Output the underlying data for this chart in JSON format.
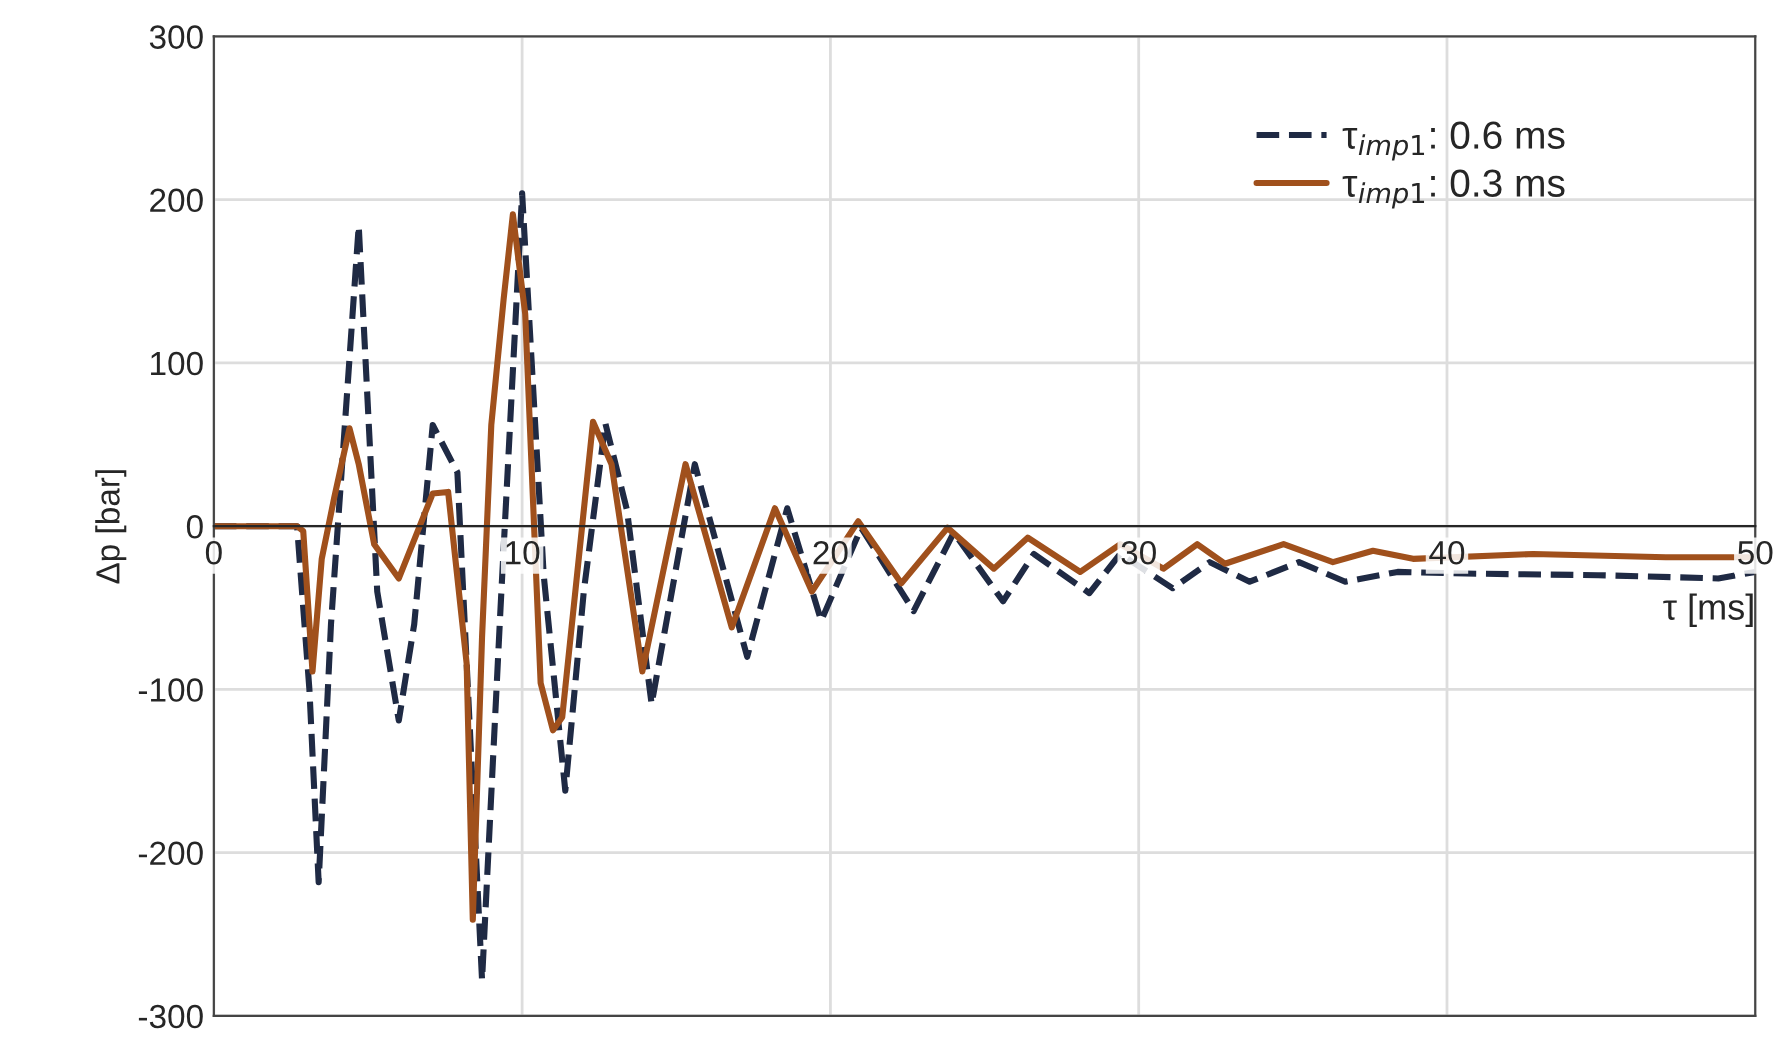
{
  "chart_data": {
    "type": "line",
    "xlabel": "τ [ms]",
    "ylabel": "Δp [bar]",
    "xlim": [
      0,
      50
    ],
    "xticks": [
      0,
      10,
      20,
      30,
      40,
      50
    ],
    "ylim": [
      -300,
      300
    ],
    "yticks": [
      -300,
      -200,
      -100,
      0,
      100,
      200,
      300
    ],
    "grid": true,
    "legend": "top right",
    "series": [
      {
        "name": "τ$_{imp1}$: 0.6 ms",
        "color": "#1f2a44",
        "line_style": "dashed",
        "x": [
          0,
          2.7,
          3.1,
          3.4,
          3.8,
          4.7,
          5.3,
          6.0,
          6.5,
          7.1,
          7.9,
          8.7,
          9.3,
          10.0,
          10.7,
          11.4,
          12.0,
          12.7,
          13.4,
          14.2,
          15.6,
          17.3,
          18.6,
          19.7,
          21.0,
          22.7,
          24.0,
          25.6,
          26.6,
          28.4,
          29.4,
          31.1,
          32.3,
          33.6,
          35.2,
          36.7,
          38.4,
          40.6,
          44.9,
          48.8,
          50
        ],
        "values": [
          0,
          0,
          -100,
          -218,
          -60,
          184,
          -40,
          -119,
          -60,
          62,
          33,
          -278,
          -50,
          204,
          -30,
          -162,
          -40,
          63,
          10,
          -109,
          38,
          -80,
          11,
          -58,
          -1,
          -52,
          -4,
          -46,
          -17,
          -41,
          -17,
          -38,
          -22,
          -34,
          -22,
          -34,
          -28,
          -29,
          -30,
          -32,
          -28
        ]
      },
      {
        "name": "τ$_{imp1}$: 0.3 ms",
        "color": "#a0501c",
        "line_style": "solid",
        "x": [
          0,
          2.7,
          2.9,
          3.2,
          3.5,
          3.9,
          4.4,
          4.7,
          5.2,
          6.0,
          7.1,
          7.6,
          8.2,
          8.4,
          8.7,
          9.0,
          9.4,
          9.7,
          10.1,
          10.6,
          11.0,
          11.3,
          12.3,
          12.9,
          13.9,
          15.3,
          16.8,
          18.2,
          19.4,
          20.9,
          22.3,
          23.8,
          25.3,
          26.4,
          28.1,
          29.4,
          30.8,
          31.9,
          32.8,
          34.7,
          36.3,
          37.6,
          38.9,
          42.8,
          47.1,
          50
        ],
        "values": [
          0,
          0,
          -3,
          -89,
          -20,
          17,
          60,
          38,
          -11,
          -32,
          20,
          21,
          -84,
          -241,
          -68,
          62,
          139,
          191,
          130,
          -96,
          -125,
          -117,
          64,
          38,
          -89,
          38,
          -62,
          11,
          -40,
          3,
          -35,
          -1,
          -26,
          -7,
          -28,
          -11,
          -26,
          -11,
          -23,
          -11,
          -22,
          -15,
          -20,
          -17,
          -19,
          -19
        ]
      }
    ]
  }
}
